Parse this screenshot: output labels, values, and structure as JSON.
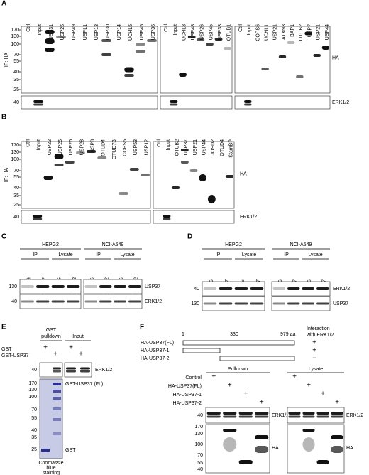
{
  "panelA": {
    "label": "A",
    "ip_label": "IP: HA",
    "lanes": [
      [
        "Ctrl",
        "Input",
        "USP31",
        "USP25",
        "USP49",
        "USPL1",
        "USP13",
        "USP30",
        "USP14",
        "UCHL5",
        "USP45",
        "USP36"
      ],
      [
        "Ctrl",
        "Input",
        "UCHL3",
        "USP48",
        "USP26",
        "USP45",
        "USP33",
        "OTUB1"
      ],
      [
        "Ctrl",
        "Input",
        "COPS6",
        "UCHL1",
        "USP21",
        "ATXN3",
        "BAP1",
        "OTUB2",
        "USP7",
        "USP21",
        "USP44"
      ]
    ],
    "markers": [
      170,
      130,
      100,
      70,
      55,
      40,
      35,
      25
    ],
    "blot_label": "HA",
    "erk_marker": 40,
    "erk_label": "ERK1/2"
  },
  "panelB": {
    "label": "B",
    "ip_label": "IP: HA",
    "lanes": [
      [
        "Ctrl",
        "Input",
        "USP22",
        "USP25",
        "USP26",
        "USP28",
        "USP8",
        "OTUD4",
        "OTUD7B",
        "COPS5",
        "USP53",
        "USP12"
      ],
      [
        "Ctrl",
        "Input",
        "OTUB2",
        "USP37",
        "USP21",
        "USP44",
        "JOSD2",
        "OTUD4",
        "StamBP"
      ]
    ],
    "markers": [
      170,
      130,
      100,
      70,
      55,
      40,
      35,
      25
    ],
    "blot_label": "HA",
    "erk_marker": 40,
    "erk_label": "ERK1/2"
  },
  "panelC": {
    "label": "C",
    "cells": [
      "HEPG2",
      "NCI-A549"
    ],
    "fractions": [
      "IP",
      "Lysate"
    ],
    "lanes": [
      "IgG",
      "ERK1/2",
      "IgG",
      "ERK1/2"
    ],
    "markers": [
      130,
      40
    ],
    "blots": [
      "USP37",
      "ERK1/2"
    ]
  },
  "panelD": {
    "label": "D",
    "cells": [
      "HEPG2",
      "NCI-A549"
    ],
    "fractions": [
      "IP",
      "Lysate"
    ],
    "lanes": [
      "IgG",
      "USP37",
      "IgG",
      "USP37"
    ],
    "markers": [
      40,
      130
    ],
    "blots": [
      "ERK1/2",
      "USP37"
    ]
  },
  "panelE": {
    "label": "E",
    "pulldown_header": [
      "GST",
      "pulldown"
    ],
    "input_header": "Input",
    "rows": [
      {
        "name": "GST",
        "signs": [
          "+",
          "+"
        ]
      },
      {
        "name": "GST-USP37",
        "signs": [
          "+",
          "+"
        ]
      }
    ],
    "erk_marker": 40,
    "erk_label": "ERK1/2",
    "gel_markers": [
      170,
      130,
      100,
      70,
      55,
      40,
      35,
      25
    ],
    "gel_labels": [
      "GST-USP37 (FL)",
      "GST"
    ],
    "stain": [
      "Coomassie",
      "blue",
      "staining"
    ]
  },
  "panelF": {
    "label": "F",
    "positions": [
      "1",
      "330",
      "979 aa"
    ],
    "interaction": [
      "Interaction",
      "with ERK1/2"
    ],
    "constructs": [
      {
        "name": "HA-USP37(FL)",
        "interaction": "+"
      },
      {
        "name": "HA-USP37-1",
        "interaction": "+"
      },
      {
        "name": "HA-USP37-2",
        "interaction": "−"
      }
    ],
    "conditions": [
      "Control",
      "HA-USP37(FL)",
      "HA-USP37-1",
      "HA-USP37-2"
    ],
    "sections": [
      {
        "name": "Pulldown",
        "signs": [
          "+",
          "+",
          "+",
          "+"
        ]
      },
      {
        "name": "Lysate",
        "signs": [
          "+",
          "+",
          "+",
          "+"
        ]
      }
    ],
    "erk_marker": 40,
    "ha_markers": [
      170,
      130,
      100,
      70,
      55,
      40
    ],
    "blots": [
      "ERK1/2",
      "HA"
    ]
  }
}
